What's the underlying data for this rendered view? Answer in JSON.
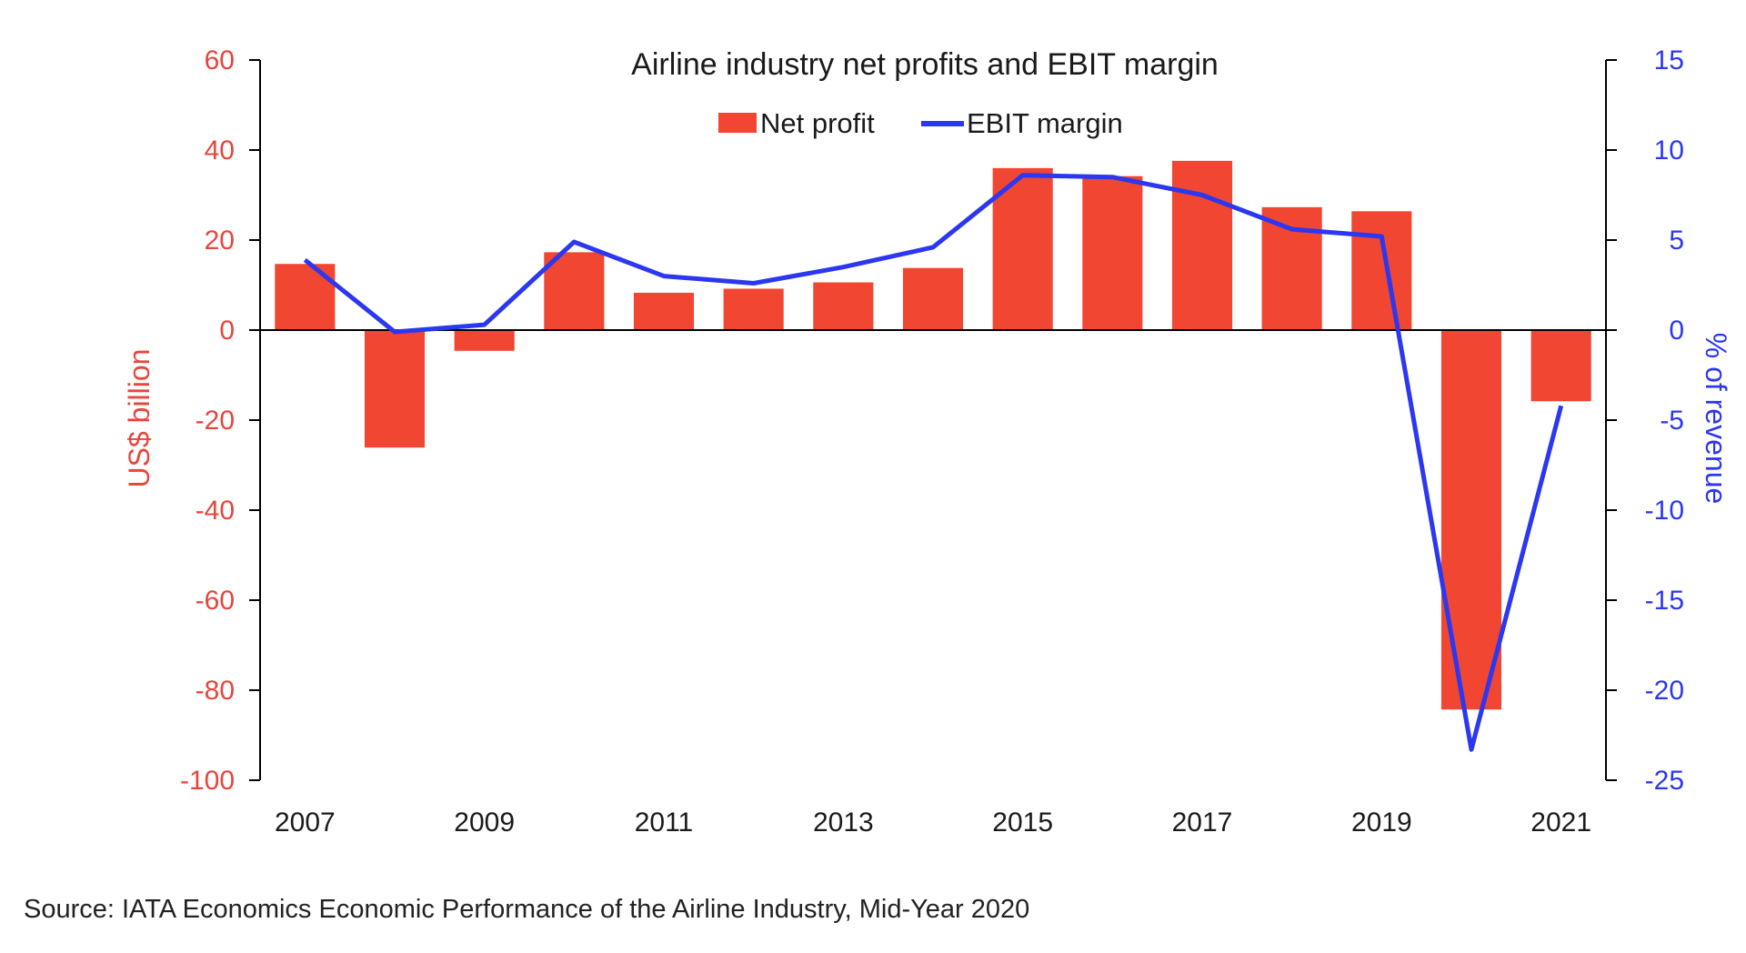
{
  "chart_data": {
    "type": "bar+line",
    "title": "Airline industry net profits and EBIT margin",
    "categories": [
      "2007",
      "2008",
      "2009",
      "2010",
      "2011",
      "2012",
      "2013",
      "2014",
      "2015",
      "2016",
      "2017",
      "2018",
      "2019",
      "2020",
      "2021"
    ],
    "x_tick_labels": [
      "2007",
      "2009",
      "2011",
      "2013",
      "2015",
      "2017",
      "2019",
      "2021"
    ],
    "series": [
      {
        "name": "Net profit",
        "type": "bar",
        "axis": "left",
        "color": "#f04632",
        "values": [
          14.7,
          -26.1,
          -4.6,
          17.3,
          8.3,
          9.2,
          10.6,
          13.8,
          36.0,
          34.2,
          37.6,
          27.3,
          26.4,
          -84.3,
          -15.8
        ]
      },
      {
        "name": "EBIT margin",
        "type": "line",
        "axis": "right",
        "color": "#2b37f0",
        "values": [
          3.9,
          -0.1,
          0.3,
          4.9,
          3.0,
          2.6,
          3.5,
          4.6,
          8.6,
          8.5,
          7.5,
          5.6,
          5.2,
          -23.3,
          -4.2
        ]
      }
    ],
    "y_left": {
      "label": "US$ billion",
      "ylim": [
        -100,
        60
      ],
      "ticks": [
        60,
        40,
        20,
        0,
        -20,
        -40,
        -60,
        -80,
        -100
      ]
    },
    "y_right": {
      "label": "% of revenue",
      "ylim": [
        -25,
        15
      ],
      "ticks": [
        15,
        10,
        5,
        0,
        -5,
        -10,
        -15,
        -20,
        -25
      ]
    },
    "grid": false,
    "legend_position": "top-center"
  },
  "source": "Source: IATA Economics Economic Performance of the Airline Industry, Mid-Year 2020"
}
